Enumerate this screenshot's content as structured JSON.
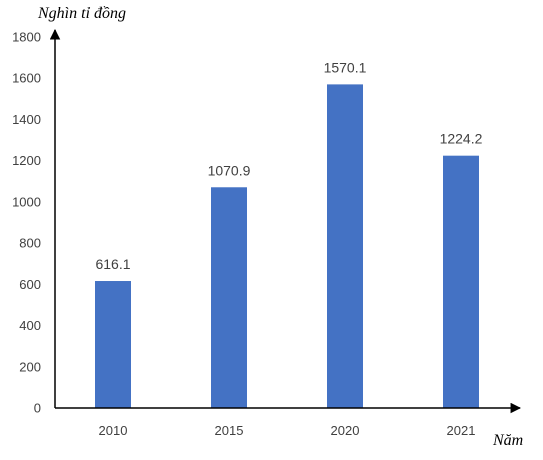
{
  "chart_data": {
    "type": "bar",
    "categories": [
      "2010",
      "2015",
      "2020",
      "2021"
    ],
    "values": [
      616.1,
      1070.9,
      1570.1,
      1224.2
    ],
    "value_labels": [
      "616.1",
      "1070.9",
      "1570.1",
      "1224.2"
    ],
    "title": "",
    "xlabel": "Năm",
    "ylabel": "Nghìn tỉ đồng",
    "ylim": [
      0,
      1800
    ],
    "yticks": [
      "0",
      "200",
      "400",
      "600",
      "800",
      "1000",
      "1200",
      "1400",
      "1600",
      "1800"
    ],
    "grid": false,
    "legend": "none",
    "bar_color": "#4472C4",
    "axis_color": "#000000"
  }
}
